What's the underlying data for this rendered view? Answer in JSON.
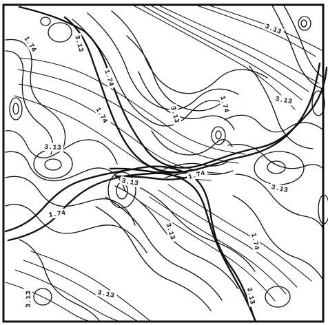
{
  "contour_plot": {
    "contour_labels": {
      "low": "1.74",
      "high": "3.13"
    }
  }
}
